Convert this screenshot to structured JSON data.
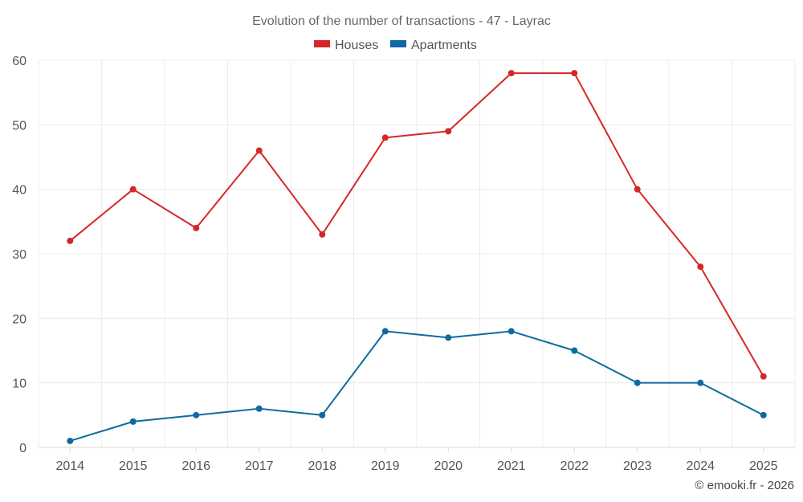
{
  "chart_data": {
    "type": "line",
    "title": "Evolution of the number of transactions - 47 - Layrac",
    "categories": [
      "2014",
      "2015",
      "2016",
      "2017",
      "2018",
      "2019",
      "2020",
      "2021",
      "2022",
      "2023",
      "2024",
      "2025"
    ],
    "series": [
      {
        "name": "Houses",
        "color": "#d62728",
        "values": [
          32,
          40,
          34,
          46,
          33,
          48,
          49,
          58,
          58,
          40,
          28,
          11
        ]
      },
      {
        "name": "Apartments",
        "color": "#0f6aa0",
        "values": [
          1,
          4,
          5,
          6,
          5,
          18,
          17,
          18,
          15,
          10,
          10,
          5
        ]
      }
    ],
    "yticks": [
      0,
      10,
      20,
      30,
      40,
      50,
      60
    ],
    "ylim": [
      0,
      60
    ],
    "grid": true,
    "legend_position": "top-center",
    "xlabel": "",
    "ylabel": ""
  },
  "credit": "© emooki.fr - 2026"
}
